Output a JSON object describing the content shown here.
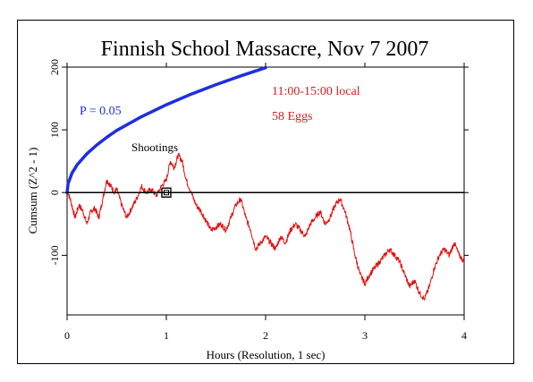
{
  "chart_data": {
    "type": "line",
    "title": "Finnish School Massacre, Nov 7 2007",
    "xlabel": "Hours (Resolution, 1 sec)",
    "ylabel": "Cumsum (Z^2 - 1)",
    "xlim": [
      0,
      4
    ],
    "ylim": [
      -195,
      200
    ],
    "x_ticks": [
      "0",
      "1",
      "2",
      "3",
      "4"
    ],
    "y_ticks": [
      "-100",
      "0",
      "100",
      "200"
    ],
    "grid": false,
    "annotations": {
      "time_window": "11:00-15:00 local",
      "eggs": "58 Eggs",
      "event": "Shootings",
      "p_label": "P = 0.05"
    },
    "event_marker": {
      "x": 1.0,
      "y": 0
    },
    "colors": {
      "cumsum": "#e41010",
      "p_curve": "#1f2ee0",
      "axes": "#000000",
      "p_label": "#1f2ee0",
      "annotation": "#d32020"
    },
    "series": [
      {
        "kind": "cumsum",
        "x": [
          0,
          0.04,
          0.08,
          0.12,
          0.16,
          0.2,
          0.24,
          0.28,
          0.32,
          0.36,
          0.4,
          0.44,
          0.48,
          0.5,
          0.55,
          0.6,
          0.65,
          0.7,
          0.75,
          0.8,
          0.85,
          0.9,
          0.95,
          1.0,
          1.04,
          1.08,
          1.12,
          1.16,
          1.2,
          1.25,
          1.3,
          1.35,
          1.4,
          1.45,
          1.5,
          1.55,
          1.6,
          1.65,
          1.7,
          1.75,
          1.8,
          1.85,
          1.9,
          1.95,
          2.0,
          2.05,
          2.1,
          2.15,
          2.2,
          2.25,
          2.3,
          2.35,
          2.4,
          2.45,
          2.5,
          2.55,
          2.6,
          2.65,
          2.7,
          2.75,
          2.8,
          2.85,
          2.9,
          2.95,
          3.0,
          3.05,
          3.1,
          3.15,
          3.2,
          3.25,
          3.3,
          3.35,
          3.4,
          3.45,
          3.5,
          3.55,
          3.6,
          3.65,
          3.7,
          3.75,
          3.8,
          3.85,
          3.9,
          3.95,
          4.0
        ],
        "y": [
          5,
          -15,
          -40,
          -20,
          -30,
          -50,
          -30,
          -25,
          -40,
          -10,
          20,
          10,
          0,
          5,
          -20,
          -40,
          -25,
          -10,
          10,
          0,
          5,
          -5,
          10,
          20,
          50,
          40,
          60,
          50,
          20,
          0,
          -20,
          -30,
          -45,
          -60,
          -55,
          -50,
          -60,
          -40,
          -20,
          -10,
          -40,
          -60,
          -90,
          -80,
          -70,
          -80,
          -90,
          -70,
          -80,
          -60,
          -50,
          -60,
          -70,
          -50,
          -40,
          -30,
          -50,
          -40,
          -20,
          -10,
          -30,
          -60,
          -100,
          -130,
          -145,
          -130,
          -120,
          -110,
          -100,
          -90,
          -100,
          -110,
          -130,
          -150,
          -140,
          -160,
          -170,
          -150,
          -120,
          -100,
          -90,
          -100,
          -80,
          -100,
          -110
        ]
      },
      {
        "kind": "p_curve",
        "name": "P = 0.05",
        "x": [
          0,
          0.01,
          0.05,
          0.1,
          0.2,
          0.3,
          0.4,
          0.5,
          0.75,
          1.0,
          1.25,
          1.5,
          1.75,
          2.0
        ],
        "y": [
          0,
          14,
          31,
          44,
          62,
          76,
          88,
          99,
          121,
          140,
          157,
          172,
          186,
          199
        ]
      }
    ]
  }
}
